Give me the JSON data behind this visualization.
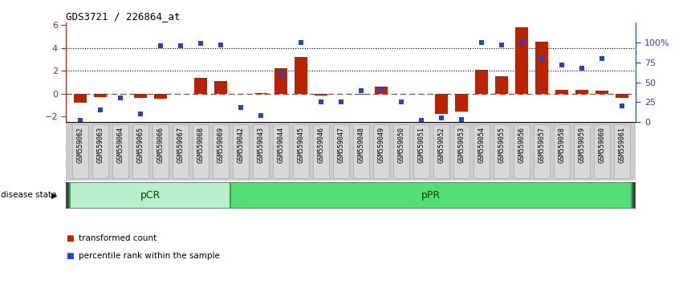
{
  "title": "GDS3721 / 226864_at",
  "samples": [
    "GSM559062",
    "GSM559063",
    "GSM559064",
    "GSM559065",
    "GSM559066",
    "GSM559067",
    "GSM559068",
    "GSM559069",
    "GSM559042",
    "GSM559043",
    "GSM559044",
    "GSM559045",
    "GSM559046",
    "GSM559047",
    "GSM559048",
    "GSM559049",
    "GSM559050",
    "GSM559051",
    "GSM559052",
    "GSM559053",
    "GSM559054",
    "GSM559055",
    "GSM559056",
    "GSM559057",
    "GSM559058",
    "GSM559059",
    "GSM559060",
    "GSM559061"
  ],
  "transformed_count": [
    -0.82,
    -0.3,
    -0.05,
    -0.38,
    -0.45,
    -0.05,
    1.4,
    1.1,
    -0.05,
    0.02,
    2.2,
    3.2,
    -0.15,
    -0.05,
    -0.1,
    0.58,
    -0.05,
    -0.05,
    -1.8,
    -1.6,
    2.1,
    1.5,
    5.8,
    4.55,
    0.35,
    0.3,
    0.25,
    -0.35
  ],
  "percentile_rank": [
    2,
    15,
    30,
    10,
    96,
    96,
    99,
    97,
    18,
    8,
    60,
    100,
    25,
    25,
    40,
    42,
    25,
    2,
    5,
    3,
    100,
    97,
    100,
    80,
    72,
    68,
    80,
    20
  ],
  "pCR_count": 8,
  "ylim_left": [
    -2.5,
    6.2
  ],
  "ylim_right": [
    0,
    125
  ],
  "yticks_left": [
    -2,
    0,
    2,
    4,
    6
  ],
  "yticks_right": [
    0,
    25,
    50,
    75,
    100
  ],
  "ytick_labels_right": [
    "0",
    "25",
    "50",
    "75",
    "100%"
  ],
  "bar_color": "#bb2200",
  "scatter_color": "#2244cc",
  "pCR_fill": "#bbeecc",
  "pPR_fill": "#55dd77",
  "pCR_edge": "#33aa44",
  "pPR_edge": "#33aa44",
  "pCR_label": "pCR",
  "pPR_label": "pPR",
  "disease_state_label": "disease state",
  "legend_bar_label": "transformed count",
  "legend_scatter_label": "percentile rank within the sample",
  "tick_bg": "#d0d0d0",
  "tick_edge": "#aaaaaa"
}
